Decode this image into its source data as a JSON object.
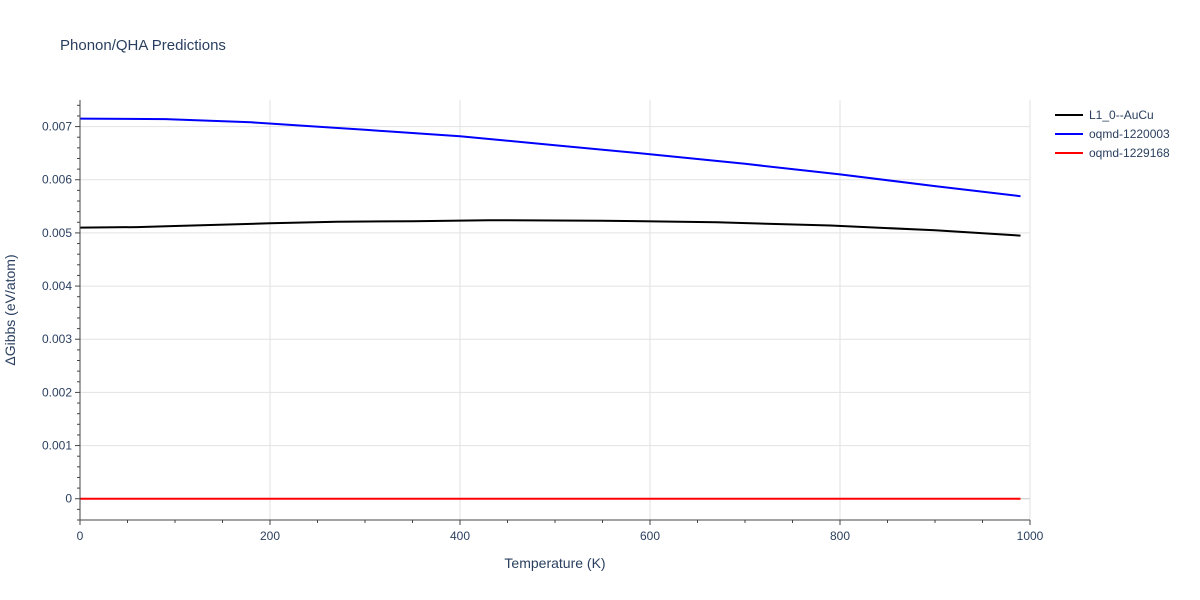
{
  "chart_data": {
    "type": "line",
    "title": "Phonon/QHA Predictions",
    "xlabel": "Temperature (K)",
    "ylabel": "ΔGibbs (eV/atom)",
    "xlim": [
      0,
      1000
    ],
    "ylim": [
      -0.0004,
      0.0075
    ],
    "x_ticks": [
      0,
      200,
      400,
      600,
      800,
      1000
    ],
    "x_tick_labels": [
      "0",
      "200",
      "400",
      "600",
      "800",
      "1000"
    ],
    "y_ticks": [
      0,
      0.001,
      0.002,
      0.003,
      0.004,
      0.005,
      0.006,
      0.007
    ],
    "y_tick_labels": [
      "0",
      "0.001",
      "0.002",
      "0.003",
      "0.004",
      "0.005",
      "0.006",
      "0.007"
    ],
    "grid": true,
    "legend_position": "top-right",
    "series": [
      {
        "name": "L1_0--AuCu",
        "color": "#000000",
        "x": [
          0,
          60,
          100,
          200,
          270,
          350,
          430,
          550,
          670,
          790,
          900,
          990
        ],
        "y": [
          0.0051,
          0.00511,
          0.00513,
          0.00518,
          0.00521,
          0.00522,
          0.00524,
          0.00523,
          0.0052,
          0.00514,
          0.00505,
          0.00495
        ]
      },
      {
        "name": "oqmd-1220003",
        "color": "#0000ff",
        "x": [
          0,
          90,
          180,
          300,
          400,
          500,
          600,
          700,
          800,
          900,
          990
        ],
        "y": [
          0.00715,
          0.00714,
          0.00708,
          0.00694,
          0.00682,
          0.00665,
          0.00648,
          0.0063,
          0.0061,
          0.00588,
          0.00569
        ]
      },
      {
        "name": "oqmd-1229168",
        "color": "#ff0000",
        "x": [
          0,
          990
        ],
        "y": [
          0,
          0
        ]
      }
    ]
  }
}
